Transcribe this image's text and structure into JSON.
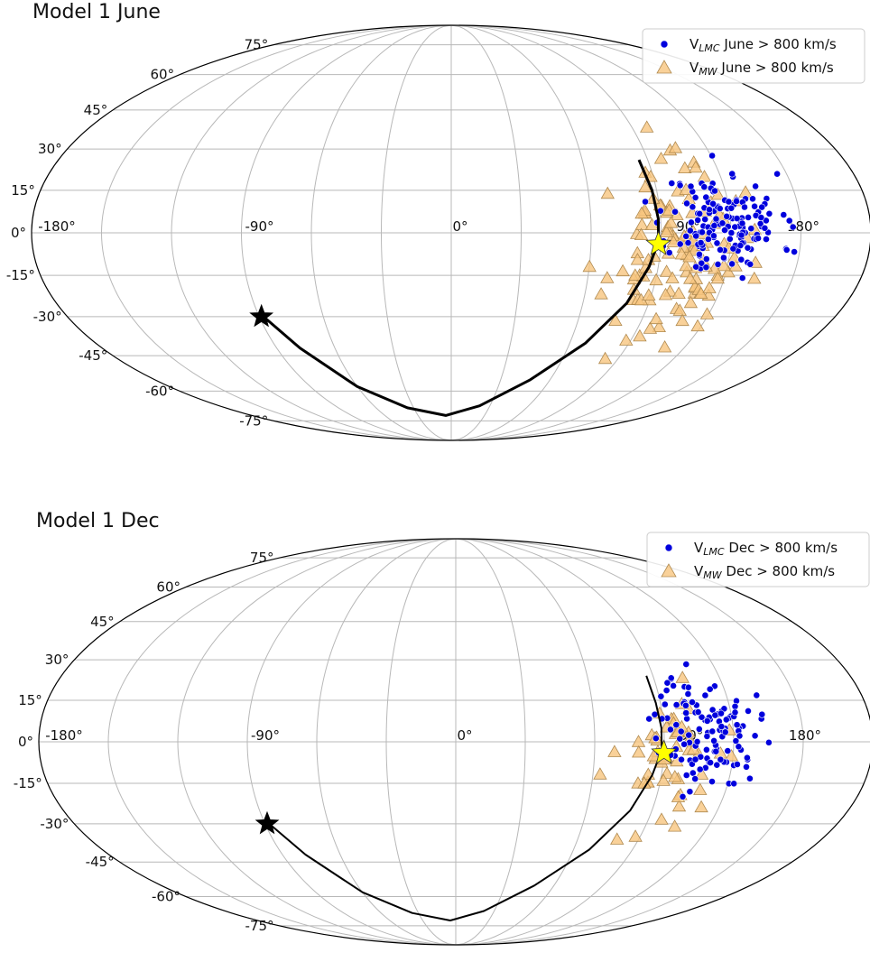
{
  "chart_data": [
    {
      "type": "scatter",
      "title": "Model 1 June",
      "projection": "mollweide",
      "grid": true,
      "legend_position": "top-right",
      "lon_tick_labels": [
        "-180°",
        "-90°",
        "0°",
        "90°",
        "180°"
      ],
      "lat_tick_labels": [
        "75°",
        "60°",
        "45°",
        "30°",
        "15°",
        "0°",
        "-15°",
        "-30°",
        "-45°",
        "-60°",
        "-75°"
      ],
      "colors": {
        "lmc": "#0000dd",
        "mw": "#f7c680",
        "mw_edge": "#b08a50",
        "track": "#000000",
        "lmc_star": "#ffff00",
        "origin_star": "#000000"
      },
      "series": [
        {
          "name": "V_LMC June > 800 km/s",
          "legend": {
            "prefix": "V",
            "sub": "LMC",
            "suffix": " June  >  800 km/s"
          },
          "marker": "circle",
          "center": [
            118,
            3
          ],
          "spread": [
            12,
            9
          ],
          "count": 160,
          "seed": 11
        },
        {
          "name": "V_MW June > 800 km/s",
          "legend": {
            "prefix": "V",
            "sub": "MW",
            "suffix": " June  >  800 km/s"
          },
          "marker": "triangle",
          "center": [
            98,
            -8
          ],
          "spread": [
            14,
            15
          ],
          "count": 130,
          "seed": 23
        }
      ],
      "track": [
        [
          86,
          26
        ],
        [
          88,
          15
        ],
        [
          89,
          5
        ],
        [
          89,
          -3
        ],
        [
          86,
          -12
        ],
        [
          80,
          -25
        ],
        [
          68,
          -40
        ],
        [
          48,
          -55
        ],
        [
          22,
          -67
        ],
        [
          -5,
          -72
        ],
        [
          -35,
          -68
        ],
        [
          -60,
          -58
        ],
        [
          -78,
          -42
        ],
        [
          -88,
          -30
        ]
      ],
      "track_width": 3,
      "lmc_star": [
        89,
        -4
      ],
      "origin_star": [
        -89,
        -30
      ]
    },
    {
      "type": "scatter",
      "title": "Model 1 Dec",
      "projection": "mollweide",
      "grid": true,
      "legend_position": "top-right",
      "lon_tick_labels": [
        "-180°",
        "-90°",
        "0°",
        "90°",
        "180°"
      ],
      "lat_tick_labels": [
        "75°",
        "60°",
        "45°",
        "30°",
        "15°",
        "0°",
        "-15°",
        "-30°",
        "-45°",
        "-60°",
        "-75°"
      ],
      "colors": {
        "lmc": "#0000dd",
        "mw": "#f7c680",
        "mw_edge": "#b08a50",
        "track": "#000000",
        "lmc_star": "#ffff00",
        "origin_star": "#000000"
      },
      "series": [
        {
          "name": "V_LMC Dec > 800 km/s",
          "legend": {
            "prefix": "V",
            "sub": "LMC",
            "suffix": " Dec  >  800 km/s"
          },
          "marker": "circle",
          "center": [
            110,
            4
          ],
          "spread": [
            11,
            10
          ],
          "count": 120,
          "seed": 37
        },
        {
          "name": "V_MW Dec > 800 km/s",
          "legend": {
            "prefix": "V",
            "sub": "MW",
            "suffix": " Dec  >  800 km/s"
          },
          "marker": "triangle",
          "center": [
            95,
            -5
          ],
          "spread": [
            12,
            13
          ],
          "count": 55,
          "seed": 53
        }
      ],
      "track": [
        [
          87,
          24
        ],
        [
          88,
          14
        ],
        [
          89,
          5
        ],
        [
          89,
          -3
        ],
        [
          86,
          -12
        ],
        [
          80,
          -25
        ],
        [
          68,
          -40
        ],
        [
          48,
          -55
        ],
        [
          22,
          -67
        ],
        [
          -5,
          -72
        ],
        [
          -35,
          -68
        ],
        [
          -60,
          -58
        ],
        [
          -78,
          -42
        ],
        [
          -88,
          -30
        ]
      ],
      "track_width": 2,
      "lmc_star": [
        90,
        -4
      ],
      "origin_star": [
        -89,
        -30
      ]
    }
  ]
}
